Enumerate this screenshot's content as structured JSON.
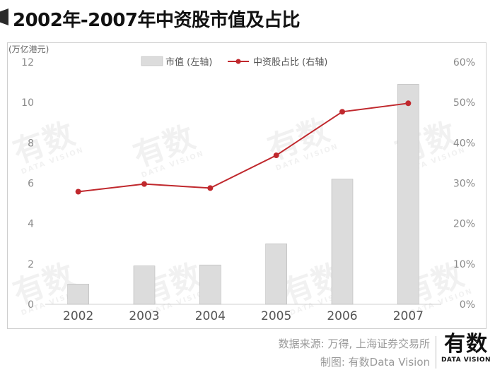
{
  "title": "2002年-2007年中资股市值及占比",
  "source": "数据来源: 万得, 上海证券交易所",
  "credit": "制图: 有数Data Vision",
  "brand": {
    "main": "有数",
    "sub": "DATA VISION"
  },
  "watermark": {
    "main": "有数",
    "sub": "DATA VISION"
  },
  "colors": {
    "bar": "#dcdcdc",
    "bar_stroke": "#b8b8b8",
    "line": "#c0282d"
  },
  "chart_data": {
    "type": "bar",
    "unit_left": "(万亿港元)",
    "categories": [
      "2002",
      "2003",
      "2004",
      "2005",
      "2006",
      "2007"
    ],
    "series": [
      {
        "name": "市值 (左轴)",
        "type": "bar",
        "axis": "left",
        "values": [
          1.0,
          1.9,
          1.95,
          3.0,
          6.2,
          10.9
        ]
      },
      {
        "name": "中资股占比 (右轴)",
        "type": "line",
        "axis": "right",
        "values": [
          27.9,
          29.8,
          28.8,
          36.9,
          47.7,
          49.8
        ]
      }
    ],
    "y_left": {
      "min": 0,
      "max": 12,
      "ticks": [
        "0",
        "2",
        "4",
        "6",
        "8",
        "10",
        "12"
      ]
    },
    "y_right": {
      "min": 0,
      "max": 60,
      "ticks": [
        "0%",
        "10%",
        "20%",
        "30%",
        "40%",
        "50%",
        "60%"
      ]
    },
    "legend_position": "top-center",
    "grid": false
  }
}
